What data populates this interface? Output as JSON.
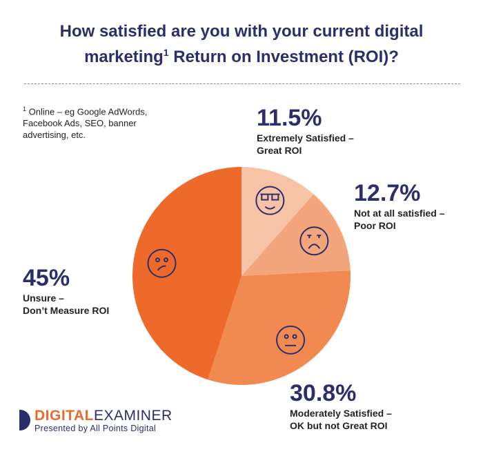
{
  "title_line1": "How satisfied are you with your current digital",
  "title_line2a": "marketing",
  "title_sup": "1",
  "title_line2b": " Return on Investment (ROI)?",
  "footnote": {
    "marker": "1",
    "text": " Online – eg Google AdWords, Facebook Ads, SEO, banner advertising, etc."
  },
  "logo": {
    "part1": "DIGITAL",
    "part2": "EXAMINER",
    "tagline": "Presented by All Points Digital"
  },
  "chart_data": {
    "type": "pie",
    "title": "How satisfied are you with your current digital marketing ROI?",
    "slices": [
      {
        "label": "Extremely Satisfied – Great ROI",
        "line1": "Extremely Satisfied –",
        "line2": "Great ROI",
        "value": 11.5,
        "pct_label": "11.5%",
        "color": "#f7c3a6",
        "icon": "cool-sunglasses-face-icon"
      },
      {
        "label": "Not at all satisfied – Poor ROI",
        "line1": "Not at all satisfied –",
        "line2": "Poor ROI",
        "value": 12.7,
        "pct_label": "12.7%",
        "color": "#f3a57b",
        "icon": "angry-face-icon"
      },
      {
        "label": "Moderately Satisfied – OK but not Great ROI",
        "line1": "Moderately Satisfied –",
        "line2": "OK but not Great ROI",
        "value": 30.8,
        "pct_label": "30.8%",
        "color": "#f18a50",
        "icon": "neutral-face-icon"
      },
      {
        "label": "Unsure – Don't Measure ROI",
        "line1": "Unsure –",
        "line2": "Don’t Measure ROI",
        "value": 45,
        "pct_label": "45%",
        "color": "#ee6a2a",
        "icon": "confused-face-icon"
      }
    ],
    "start": "top",
    "direction": "clockwise",
    "icon_color": "#2b2e6b"
  }
}
